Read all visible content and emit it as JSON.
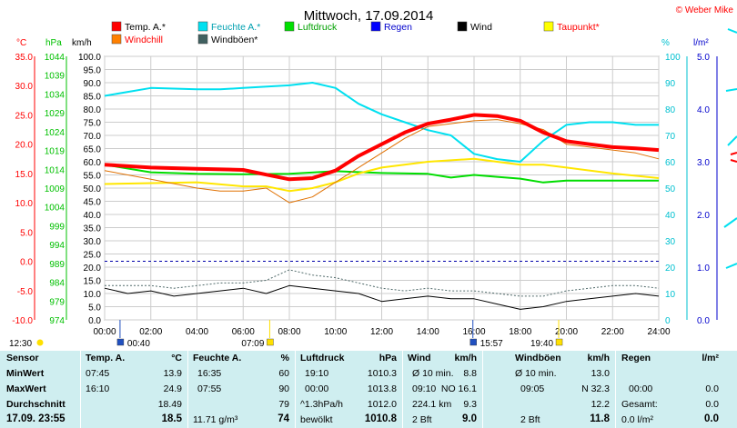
{
  "title": "Mittwoch, 17.09.2014",
  "copyright": "© Weber Mike",
  "legend": [
    {
      "label": "Temp. A.*",
      "color": "#ff0000"
    },
    {
      "label": "Feuchte A.*",
      "color": "#00e0f0"
    },
    {
      "label": "Luftdruck",
      "color": "#00e000"
    },
    {
      "label": "Regen",
      "color": "#0000ff"
    },
    {
      "label": "Wind",
      "color": "#000000"
    },
    {
      "label": "Taupunkt*",
      "color": "#ffff00"
    },
    {
      "label": "Windchill",
      "color": "#ff8000"
    },
    {
      "label": "Windböen*",
      "color": "#406060"
    }
  ],
  "axes": {
    "temp": {
      "unit": "°C",
      "ticks": [
        "35.0",
        "30.0",
        "25.0",
        "20.0",
        "15.0",
        "10.0",
        "5.0",
        "0.0",
        "-5.0",
        "-10.0"
      ]
    },
    "pressure": {
      "unit": "hPa",
      "ticks": [
        "1044",
        "1039",
        "1034",
        "1029",
        "1024",
        "1019",
        "1014",
        "1009",
        "1004",
        "999",
        "994",
        "989",
        "984",
        "979",
        "974"
      ]
    },
    "wind": {
      "unit": "km/h",
      "ticks": [
        "100.0",
        "95.0",
        "90.0",
        "85.0",
        "80.0",
        "75.0",
        "70.0",
        "65.0",
        "60.0",
        "55.0",
        "50.0",
        "45.0",
        "40.0",
        "35.0",
        "30.0",
        "25.0",
        "20.0",
        "15.0",
        "10.0",
        "5.0",
        "0.0"
      ]
    },
    "humidity": {
      "unit": "%",
      "ticks": [
        "100",
        "90",
        "80",
        "70",
        "60",
        "50",
        "40",
        "30",
        "20",
        "10",
        "0"
      ]
    },
    "rain": {
      "unit": "l/m²",
      "ticks": [
        "5.0",
        "4.0",
        "3.0",
        "2.0",
        "1.0",
        "0.0"
      ]
    },
    "time_ticks": [
      "00:00",
      "02:00",
      "04:00",
      "06:00",
      "08:00",
      "10:00",
      "12:00",
      "14:00",
      "16:00",
      "18:00",
      "20:00",
      "22:00",
      "24:00"
    ]
  },
  "markers": {
    "sunrise_prev": "12:30",
    "moonset": "00:40",
    "sunrise": "07:09",
    "moonrise": "15:57",
    "sunset": "19:40"
  },
  "chart_data": {
    "type": "line",
    "x_unit": "hour",
    "xlim": [
      0,
      24
    ],
    "series": [
      {
        "name": "Temp. A.*",
        "axis": "temp",
        "values": [
          [
            0,
            16.5
          ],
          [
            2,
            16.0
          ],
          [
            4,
            15.8
          ],
          [
            6,
            15.6
          ],
          [
            7,
            14.8
          ],
          [
            8,
            14.0
          ],
          [
            9,
            14.2
          ],
          [
            10,
            15.5
          ],
          [
            11,
            18.0
          ],
          [
            12,
            20.0
          ],
          [
            13,
            22.0
          ],
          [
            14,
            23.5
          ],
          [
            15,
            24.2
          ],
          [
            16,
            25.0
          ],
          [
            17,
            24.8
          ],
          [
            18,
            24.0
          ],
          [
            19,
            22.0
          ],
          [
            20,
            20.5
          ],
          [
            21,
            20.0
          ],
          [
            22,
            19.5
          ],
          [
            23,
            19.3
          ],
          [
            24,
            19.0
          ]
        ]
      },
      {
        "name": "Windchill",
        "axis": "temp",
        "values": [
          [
            0,
            15.5
          ],
          [
            2,
            14.0
          ],
          [
            4,
            12.5
          ],
          [
            5,
            12.0
          ],
          [
            6,
            12.0
          ],
          [
            7,
            12.5
          ],
          [
            8,
            10.0
          ],
          [
            9,
            11.0
          ],
          [
            10,
            13.5
          ],
          [
            11,
            16.0
          ],
          [
            12,
            18.5
          ],
          [
            13,
            21.0
          ],
          [
            14,
            23.0
          ],
          [
            15,
            23.5
          ],
          [
            16,
            24.0
          ],
          [
            17,
            24.2
          ],
          [
            18,
            23.5
          ],
          [
            19,
            22.5
          ],
          [
            20,
            20.0
          ],
          [
            21,
            19.5
          ],
          [
            22,
            19.0
          ],
          [
            23,
            18.5
          ],
          [
            24,
            17.5
          ]
        ]
      },
      {
        "name": "Taupunkt*",
        "axis": "temp",
        "values": [
          [
            0,
            13.2
          ],
          [
            4,
            13.5
          ],
          [
            6,
            12.8
          ],
          [
            7,
            12.8
          ],
          [
            8,
            12.0
          ],
          [
            9,
            12.5
          ],
          [
            10,
            13.5
          ],
          [
            11,
            15.0
          ],
          [
            12,
            16.0
          ],
          [
            14,
            17.0
          ],
          [
            16,
            17.5
          ],
          [
            17,
            17.0
          ],
          [
            18,
            16.5
          ],
          [
            19,
            16.5
          ],
          [
            20,
            16.0
          ],
          [
            22,
            15.0
          ],
          [
            24,
            14.2
          ]
        ]
      },
      {
        "name": "Feuchte A.*",
        "axis": "humidity",
        "values": [
          [
            0,
            85
          ],
          [
            2,
            88
          ],
          [
            4,
            87.5
          ],
          [
            5,
            87.5
          ],
          [
            6,
            88
          ],
          [
            8,
            89
          ],
          [
            9,
            90
          ],
          [
            10,
            88
          ],
          [
            11,
            82
          ],
          [
            12,
            78
          ],
          [
            13,
            75
          ],
          [
            14,
            72
          ],
          [
            15,
            70
          ],
          [
            16,
            63
          ],
          [
            17,
            61
          ],
          [
            18,
            60
          ],
          [
            19,
            68
          ],
          [
            20,
            74
          ],
          [
            21,
            75
          ],
          [
            22,
            75
          ],
          [
            23,
            74
          ],
          [
            24,
            74
          ]
        ]
      },
      {
        "name": "Luftdruck",
        "axis": "pressure",
        "values": [
          [
            0,
            1015.2
          ],
          [
            2,
            1013.2
          ],
          [
            4,
            1012.8
          ],
          [
            6,
            1012.7
          ],
          [
            8,
            1012.8
          ],
          [
            10,
            1013.5
          ],
          [
            12,
            1013.0
          ],
          [
            14,
            1012.8
          ],
          [
            15,
            1011.8
          ],
          [
            16,
            1012.5
          ],
          [
            17,
            1012.0
          ],
          [
            18,
            1011.5
          ],
          [
            19,
            1010.5
          ],
          [
            20,
            1011.0
          ],
          [
            22,
            1011.0
          ],
          [
            24,
            1011.0
          ]
        ]
      },
      {
        "name": "Wind",
        "axis": "wind",
        "values": [
          [
            0,
            12
          ],
          [
            1,
            10
          ],
          [
            2,
            11
          ],
          [
            3,
            9
          ],
          [
            4,
            10
          ],
          [
            5,
            11
          ],
          [
            6,
            12
          ],
          [
            7,
            10
          ],
          [
            8,
            13
          ],
          [
            9,
            12
          ],
          [
            10,
            11
          ],
          [
            11,
            10
          ],
          [
            12,
            7
          ],
          [
            13,
            8
          ],
          [
            14,
            9
          ],
          [
            15,
            8
          ],
          [
            16,
            8
          ],
          [
            17,
            6
          ],
          [
            18,
            4
          ],
          [
            19,
            5
          ],
          [
            20,
            7
          ],
          [
            21,
            8
          ],
          [
            22,
            9
          ],
          [
            23,
            10
          ],
          [
            24,
            9
          ]
        ]
      },
      {
        "name": "Windböen*",
        "axis": "wind",
        "values": [
          [
            0,
            13
          ],
          [
            1,
            13
          ],
          [
            2,
            13
          ],
          [
            3,
            12
          ],
          [
            4,
            13
          ],
          [
            5,
            14
          ],
          [
            6,
            14
          ],
          [
            7,
            15
          ],
          [
            8,
            19
          ],
          [
            9,
            17
          ],
          [
            10,
            16
          ],
          [
            11,
            14
          ],
          [
            12,
            12
          ],
          [
            13,
            11
          ],
          [
            14,
            12
          ],
          [
            15,
            11
          ],
          [
            16,
            11
          ],
          [
            17,
            10
          ],
          [
            18,
            9
          ],
          [
            19,
            9
          ],
          [
            20,
            11
          ],
          [
            21,
            12
          ],
          [
            22,
            13
          ],
          [
            23,
            13
          ],
          [
            24,
            12
          ]
        ]
      }
    ],
    "reference_lines": [
      {
        "axis": "temp",
        "value": 0.0,
        "color": "#0000aa",
        "style": "dashed"
      }
    ]
  },
  "stats": {
    "sensor": {
      "header": "Sensor",
      "rows": [
        "MinWert",
        "MaxWert",
        "Durchschnitt"
      ],
      "current": "17.09. 23:55"
    },
    "temp": {
      "header": "Temp. A.",
      "unit": "°C",
      "min_time": "07:45",
      "min": "13.9",
      "max_time": "16:10",
      "max": "24.9",
      "avg": "18.49",
      "current": "18.5"
    },
    "feuchte": {
      "header": "Feuchte A.",
      "unit": "%",
      "min_time": "16:35",
      "min": "60",
      "max_time": "07:55",
      "max": "90",
      "avg": "79",
      "extra": "11.71 g/m³",
      "current": "74"
    },
    "luftdruck": {
      "header": "Luftdruck",
      "unit": "hPa",
      "min_time": "19:10",
      "min": "1010.3",
      "max_time": "00:00",
      "max": "1013.8",
      "trend": "^1.3hPa/h",
      "avg": "1012.0",
      "weather": "bewölkt",
      "current": "1010.8"
    },
    "wind": {
      "header": "Wind",
      "unit": "km/h",
      "r1_label": "Ø 10 min.",
      "r1_val": "8.8",
      "r2_time": "09:10",
      "r2_val": "NO 16.1",
      "r3_label": "224.1 km",
      "r3_val": "9.3",
      "bft": "2 Bft",
      "current": "9.0"
    },
    "windboeen": {
      "header": "Windböen",
      "unit": "km/h",
      "r1_label": "Ø 10 min.",
      "r1_val": "13.0",
      "r2_time": "09:05",
      "r2_val": "N 32.3",
      "avg": "12.2",
      "bft": "2 Bft",
      "current": "11.8"
    },
    "regen": {
      "header": "Regen",
      "unit": "l/m²",
      "r2_time": "00:00",
      "r2_val": "0.0",
      "r3_label": "Gesamt:",
      "r3_val": "0.0",
      "last_label": "0.0 l/m²",
      "current": "0.0"
    }
  }
}
